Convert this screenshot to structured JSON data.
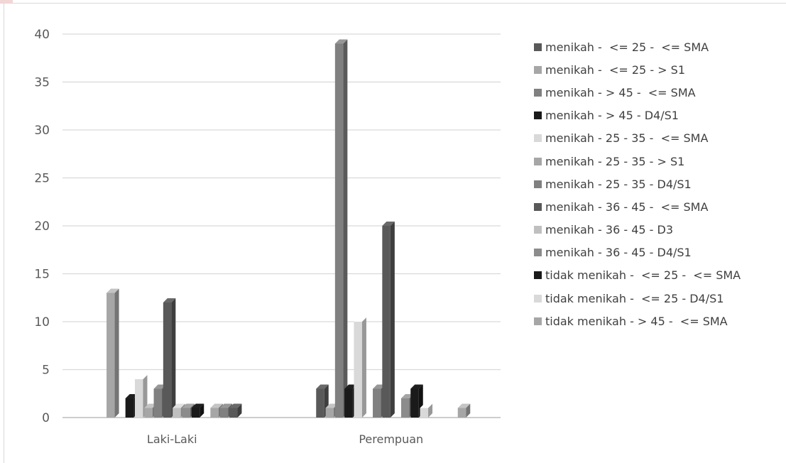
{
  "chart_data": {
    "type": "bar",
    "title": "",
    "xlabel": "",
    "ylabel": "",
    "ylim": [
      0,
      40
    ],
    "yticks": [
      0,
      5,
      10,
      15,
      20,
      25,
      30,
      35,
      40
    ],
    "grid": true,
    "legend_position": "right",
    "categories": [
      "Laki-Laki",
      "Perempuan"
    ],
    "series": [
      {
        "name": "menikah -  <= 25 -  <= SMA",
        "color": "#595959",
        "values": [
          null,
          3
        ]
      },
      {
        "name": "menikah -  <= 25 - > S1",
        "color": "#a6a6a6",
        "values": [
          13,
          1
        ]
      },
      {
        "name": "menikah - > 45 -  <= SMA",
        "color": "#808080",
        "values": [
          null,
          39
        ]
      },
      {
        "name": "menikah - > 45 - D4/S1",
        "color": "#1a1a1a",
        "values": [
          2,
          3
        ]
      },
      {
        "name": "menikah - 25 - 35 -  <= SMA",
        "color": "#d9d9d9",
        "values": [
          4,
          10
        ]
      },
      {
        "name": "menikah - 25 - 35 - > S1",
        "color": "#a6a6a6",
        "values": [
          1,
          null
        ]
      },
      {
        "name": "menikah - 25 - 35 - D4/S1",
        "color": "#808080",
        "values": [
          3,
          3
        ]
      },
      {
        "name": "menikah - 36 - 45 -  <= SMA",
        "color": "#595959",
        "values": [
          12,
          20
        ]
      },
      {
        "name": "menikah - 36 - 45 - D3",
        "color": "#bfbfbf",
        "values": [
          1,
          null
        ]
      },
      {
        "name": "menikah - 36 - 45 - D4/S1",
        "color": "#8c8c8c",
        "values": [
          1,
          2
        ]
      },
      {
        "name": "tidak menikah -  <= 25 -  <= SMA",
        "color": "#1a1a1a",
        "values": [
          1,
          3
        ]
      },
      {
        "name": "tidak menikah -  <= 25 - D4/S1",
        "color": "#d9d9d9",
        "values": [
          null,
          1
        ]
      },
      {
        "name": "tidak menikah - > 45 -  <= SMA",
        "color": "#a6a6a6",
        "values": [
          1,
          null
        ]
      },
      {
        "name": "",
        "color": "#808080",
        "values": [
          1,
          null
        ]
      },
      {
        "name": "",
        "color": "#595959",
        "values": [
          1,
          null
        ]
      },
      {
        "name": "",
        "color": "#a6a6a6",
        "values": [
          null,
          1
        ]
      }
    ]
  }
}
